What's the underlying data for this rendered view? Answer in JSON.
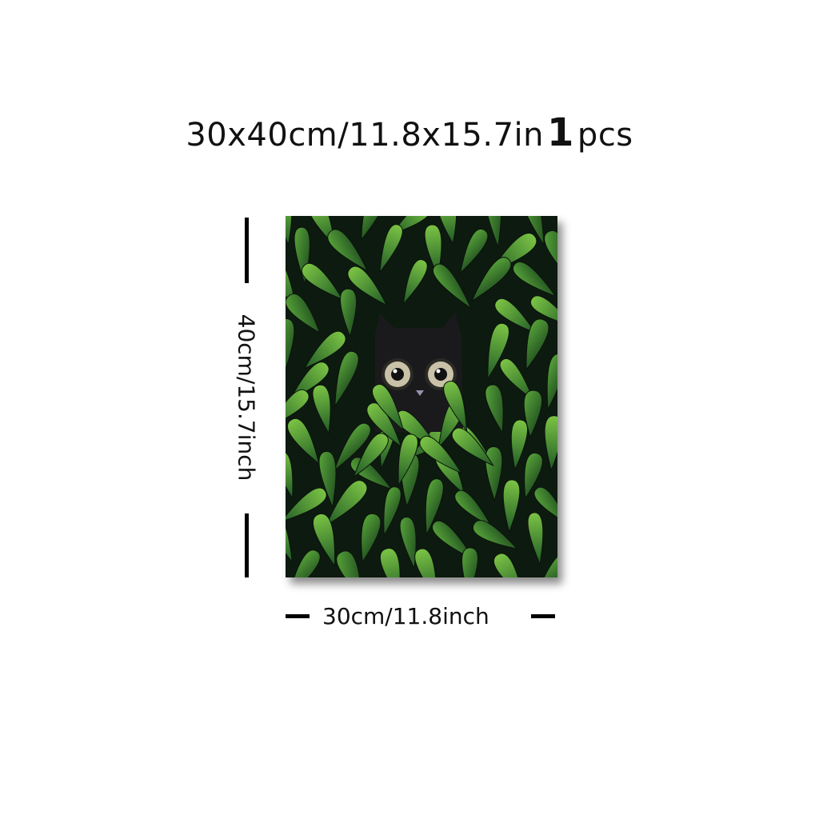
{
  "header": {
    "size_text": "30x40cm/11.8x15.7in",
    "quantity_number": "1",
    "quantity_unit": "pcs"
  },
  "dimensions": {
    "height_label": "40cm/15.7inch",
    "width_label": "30cm/11.8inch"
  },
  "artwork": {
    "subject": "black cat peeking through green leaves",
    "colors": {
      "background": "#0d1a0f",
      "leaf_light": "#6dbb3a",
      "leaf_dark": "#1f5a25",
      "cat": "#1a1a1c",
      "eye_iris": "#c9c2a8",
      "nose": "#9a8fb0"
    }
  }
}
